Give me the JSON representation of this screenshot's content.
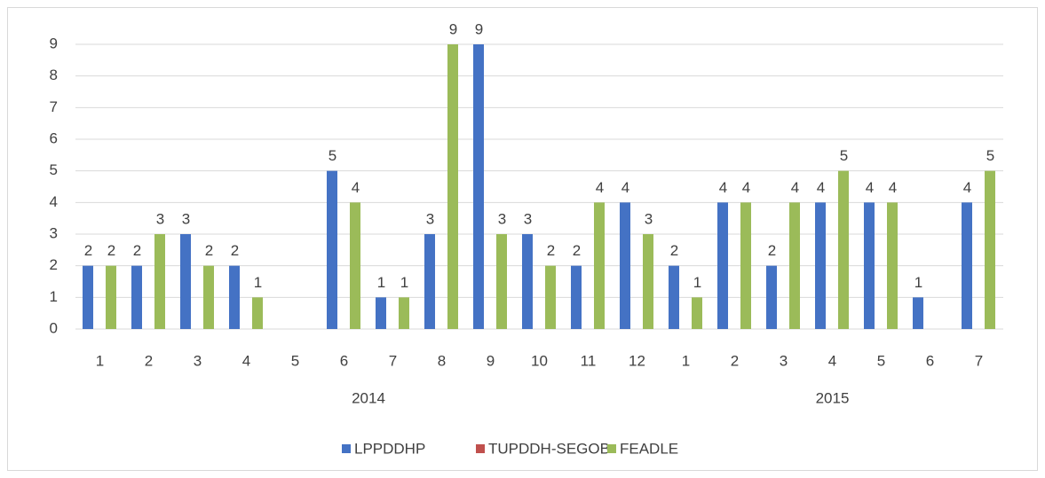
{
  "chart_data": {
    "type": "bar",
    "categories": [
      "1",
      "2",
      "3",
      "4",
      "5",
      "6",
      "7",
      "8",
      "9",
      "10",
      "11",
      "12",
      "1",
      "2",
      "3",
      "4",
      "5",
      "6",
      "7"
    ],
    "x_groups": [
      {
        "label": "2014",
        "size": 12
      },
      {
        "label": "2015",
        "size": 7
      }
    ],
    "series": [
      {
        "name": "LPPDDHP",
        "color": "#4472c4",
        "values": [
          2,
          2,
          3,
          2,
          null,
          5,
          1,
          3,
          9,
          3,
          2,
          4,
          2,
          4,
          2,
          4,
          4,
          1,
          4
        ]
      },
      {
        "name": "TUPDDH-SEGOB",
        "color": "#c0504d",
        "values": [
          null,
          null,
          null,
          null,
          null,
          null,
          null,
          null,
          null,
          null,
          null,
          null,
          null,
          null,
          null,
          null,
          null,
          null,
          null
        ]
      },
      {
        "name": "FEADLE",
        "color": "#9bbb59",
        "values": [
          2,
          3,
          2,
          1,
          null,
          4,
          1,
          9,
          3,
          2,
          4,
          3,
          1,
          4,
          4,
          5,
          4,
          null,
          5
        ]
      }
    ],
    "ylim": [
      0,
      9
    ],
    "yticks": [
      0,
      1,
      2,
      3,
      4,
      5,
      6,
      7,
      8,
      9
    ],
    "grid": true,
    "legend": "bottom",
    "data_labels": true
  }
}
